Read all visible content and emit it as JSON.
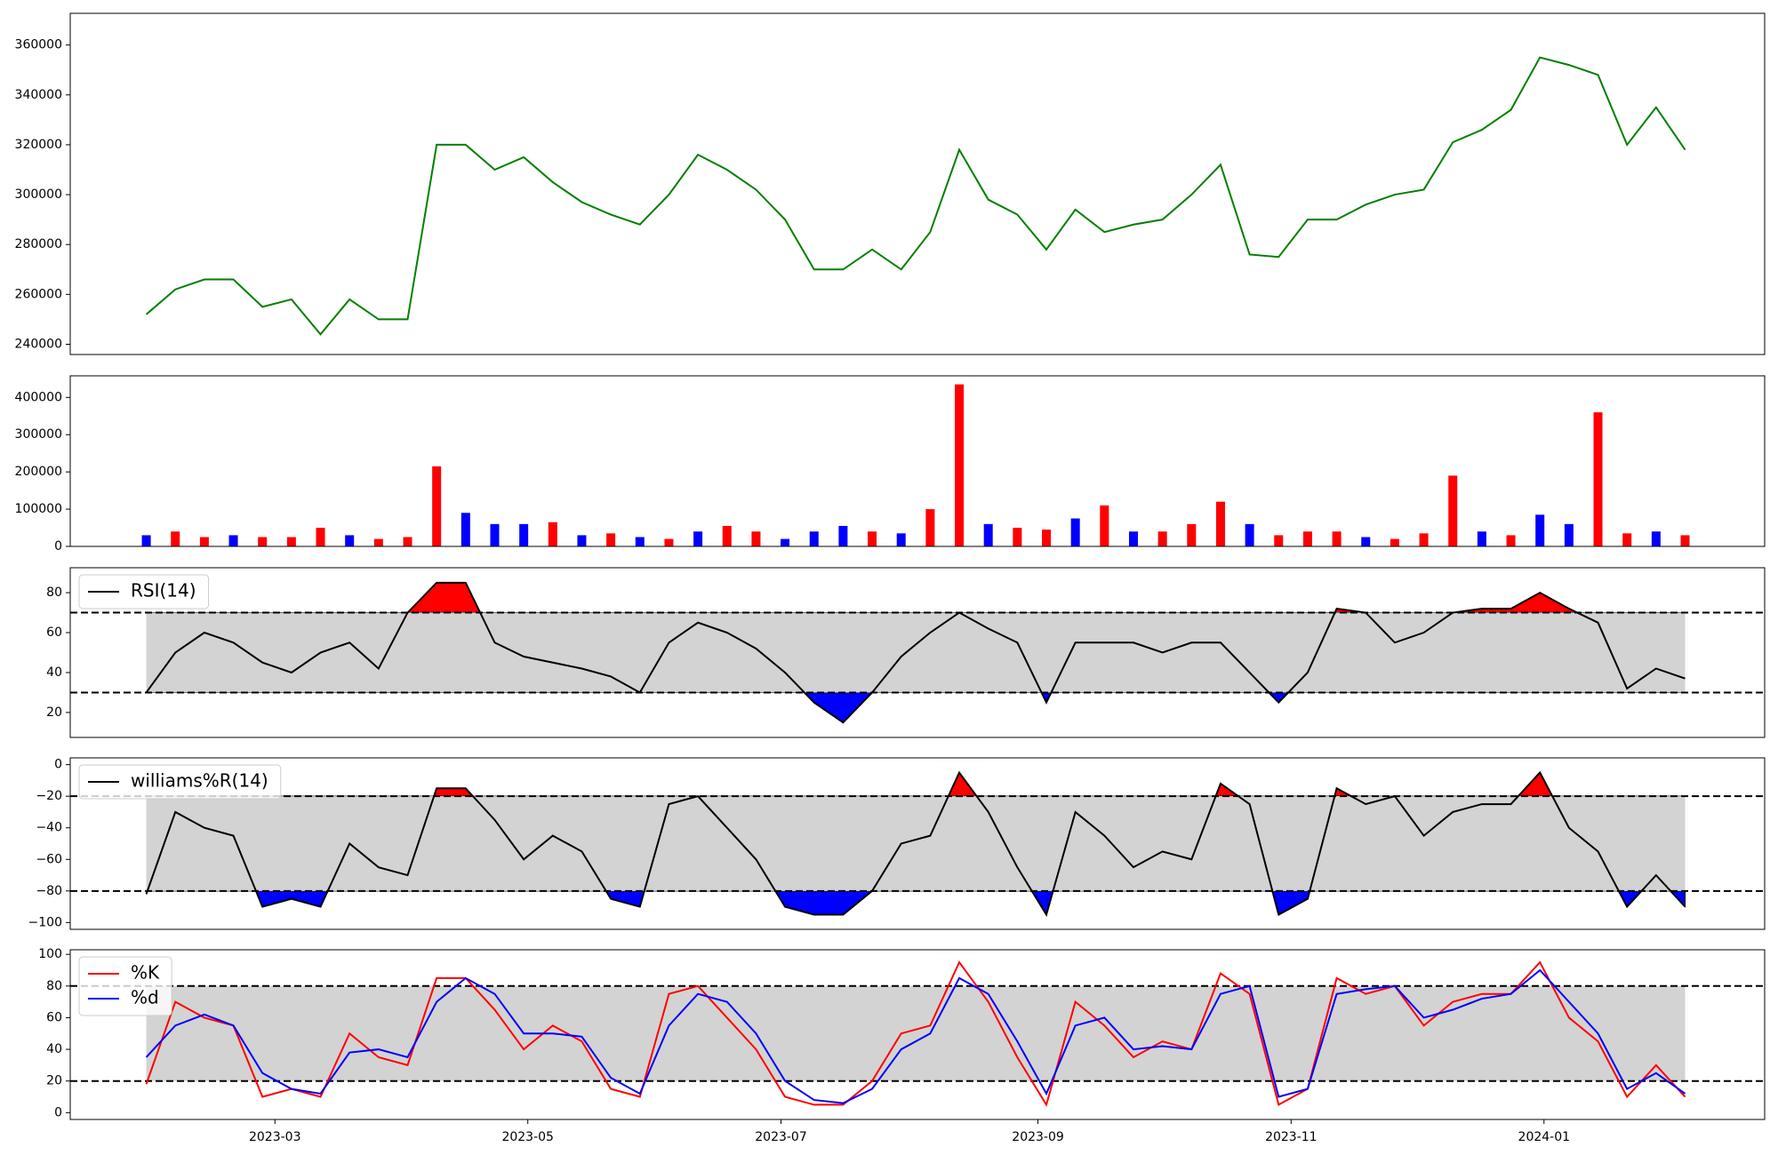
{
  "chart_data": [
    {
      "type": "line",
      "xlim": [
        -2.62,
        55.74
      ],
      "ylim": [
        235900,
        372700
      ],
      "yticks": [
        240000,
        260000,
        280000,
        300000,
        320000,
        340000,
        360000
      ],
      "series": [
        {
          "color": "#008000",
          "values": [
            252000,
            262000,
            266000,
            266000,
            255000,
            258000,
            244000,
            258000,
            250000,
            250000,
            320000,
            320000,
            310000,
            315000,
            305000,
            297000,
            292000,
            288000,
            300000,
            316000,
            310000,
            302000,
            290000,
            270000,
            270000,
            278000,
            270000,
            285000,
            318000,
            298000,
            292000,
            278000,
            294000,
            285000,
            288000,
            290000,
            300000,
            312000,
            276000,
            275000,
            290000,
            290000,
            296000,
            300000,
            302000,
            321000,
            326000,
            334000,
            355000,
            352000,
            348000,
            320000,
            335000,
            318000
          ]
        }
      ]
    },
    {
      "type": "bar",
      "xlim": [
        -2.62,
        55.74
      ],
      "ylim": [
        0,
        458000
      ],
      "yticks": [
        0,
        100000,
        200000,
        300000,
        400000
      ],
      "values": [
        30000,
        40000,
        25000,
        30000,
        25000,
        25000,
        50000,
        30000,
        20000,
        25000,
        215000,
        90000,
        60000,
        60000,
        65000,
        30000,
        35000,
        25000,
        20000,
        40000,
        55000,
        40000,
        20000,
        40000,
        55000,
        40000,
        35000,
        100000,
        435000,
        60000,
        50000,
        45000,
        75000,
        110000,
        40000,
        40000,
        60000,
        120000,
        60000,
        30000,
        40000,
        40000,
        25000,
        20000,
        35000,
        190000,
        40000,
        30000,
        85000,
        60000,
        360000,
        35000,
        40000,
        30000
      ],
      "colors": [
        "blue",
        "red",
        "red",
        "blue",
        "red",
        "red",
        "red",
        "blue",
        "red",
        "red",
        "red",
        "blue",
        "blue",
        "blue",
        "red",
        "blue",
        "red",
        "blue",
        "red",
        "blue",
        "red",
        "red",
        "blue",
        "blue",
        "blue",
        "red",
        "blue",
        "red",
        "red",
        "blue",
        "red",
        "red",
        "blue",
        "red",
        "blue",
        "red",
        "red",
        "red",
        "blue",
        "red",
        "red",
        "red",
        "blue",
        "red",
        "red",
        "red",
        "blue",
        "red",
        "blue",
        "blue",
        "red",
        "red",
        "blue",
        "red"
      ]
    },
    {
      "type": "line",
      "xlim": [
        -2.62,
        55.74
      ],
      "ylim": [
        7.5,
        92.5
      ],
      "yticks": [
        20,
        40,
        60,
        80
      ],
      "hlines": [
        30,
        70
      ],
      "band_color": "#d3d3d3",
      "over_color": "red",
      "under_color": "blue",
      "legend": "upper left",
      "series": [
        {
          "name": "RSI(14)",
          "color": "#000000",
          "values": [
            30,
            50,
            60,
            55,
            45,
            40,
            50,
            55,
            42,
            70,
            85,
            85,
            55,
            48,
            45,
            42,
            38,
            30,
            55,
            65,
            60,
            52,
            40,
            25,
            15,
            30,
            48,
            60,
            70,
            62,
            55,
            25,
            55,
            55,
            55,
            50,
            55,
            55,
            40,
            25,
            40,
            72,
            70,
            55,
            60,
            70,
            72,
            72,
            80,
            72,
            65,
            32,
            42,
            37
          ]
        }
      ]
    },
    {
      "type": "line",
      "xlim": [
        -2.62,
        55.74
      ],
      "ylim": [
        -104.3,
        4.3
      ],
      "yticks": [
        {
          "value": -100,
          "label": "−100"
        },
        {
          "value": -80,
          "label": "−80"
        },
        {
          "value": -60,
          "label": "−60"
        },
        {
          "value": -40,
          "label": "−40"
        },
        {
          "value": -20,
          "label": "−20"
        },
        0
      ],
      "hlines": [
        -80,
        -20
      ],
      "band_color": "#d3d3d3",
      "over_color": "red",
      "under_color": "blue",
      "legend": "upper left",
      "series": [
        {
          "name": "williams%R(14)",
          "color": "#000000",
          "values": [
            -82,
            -30,
            -40,
            -45,
            -90,
            -85,
            -90,
            -50,
            -65,
            -70,
            -15,
            -15,
            -35,
            -60,
            -45,
            -55,
            -85,
            -90,
            -25,
            -20,
            -40,
            -60,
            -90,
            -95,
            -95,
            -80,
            -50,
            -45,
            -5,
            -30,
            -65,
            -95,
            -30,
            -45,
            -65,
            -55,
            -60,
            -12,
            -25,
            -95,
            -85,
            -15,
            -25,
            -20,
            -45,
            -30,
            -25,
            -25,
            -5,
            -40,
            -55,
            -90,
            -70,
            -90
          ]
        }
      ]
    },
    {
      "type": "line",
      "xlim": [
        -2.62,
        55.74
      ],
      "ylim": [
        -4.3,
        102.9
      ],
      "yticks": [
        0,
        20,
        40,
        60,
        80,
        100
      ],
      "hlines": [
        20,
        80
      ],
      "band_color": "#d3d3d3",
      "legend": "upper left",
      "xticks": [
        {
          "value": 4.43,
          "label": "2023-03"
        },
        {
          "value": 13.14,
          "label": "2023-05"
        },
        {
          "value": 21.86,
          "label": "2023-07"
        },
        {
          "value": 30.71,
          "label": "2023-09"
        },
        {
          "value": 39.43,
          "label": "2023-11"
        },
        {
          "value": 48.14,
          "label": "2024-01"
        }
      ],
      "series": [
        {
          "name": "%K",
          "color": "red",
          "values": [
            18,
            70,
            60,
            55,
            10,
            15,
            10,
            50,
            35,
            30,
            85,
            85,
            65,
            40,
            55,
            45,
            15,
            10,
            75,
            80,
            60,
            40,
            10,
            5,
            5,
            20,
            50,
            55,
            95,
            70,
            35,
            5,
            70,
            55,
            35,
            45,
            40,
            88,
            75,
            5,
            15,
            85,
            75,
            80,
            55,
            70,
            75,
            75,
            95,
            60,
            45,
            10,
            30,
            10
          ]
        },
        {
          "name": "%d",
          "color": "blue",
          "values": [
            35,
            55,
            62,
            55,
            25,
            15,
            12,
            38,
            40,
            35,
            70,
            85,
            75,
            50,
            50,
            48,
            22,
            12,
            55,
            75,
            70,
            50,
            20,
            8,
            6,
            15,
            40,
            50,
            85,
            75,
            45,
            12,
            55,
            60,
            40,
            42,
            40,
            75,
            80,
            10,
            15,
            75,
            78,
            80,
            60,
            65,
            72,
            75,
            90,
            70,
            50,
            15,
            25,
            12
          ]
        }
      ]
    }
  ]
}
